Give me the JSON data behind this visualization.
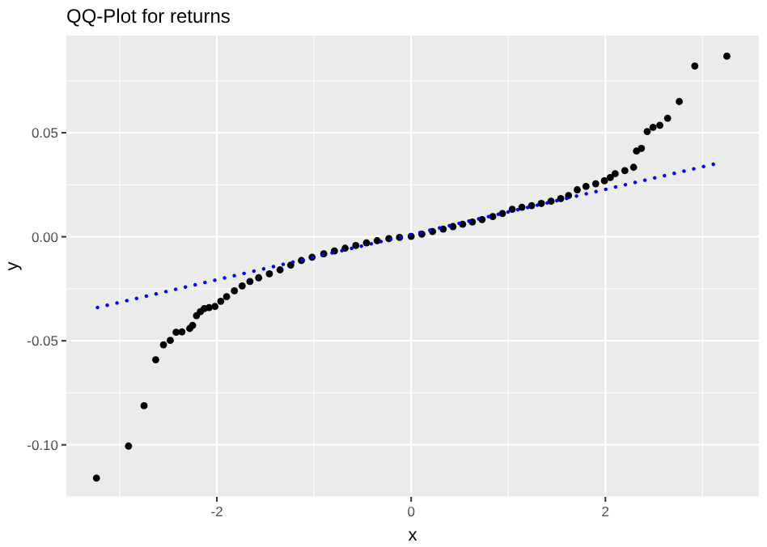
{
  "chart_data": {
    "type": "scatter",
    "title": "QQ-Plot for returns",
    "xlabel": "x",
    "ylabel": "y",
    "xlim": [
      -3.55,
      3.58
    ],
    "xticks": [
      -2,
      0,
      2
    ],
    "ylim": [
      -0.125,
      0.0967
    ],
    "yticks": [
      {
        "value": -0.1,
        "label": "-0.10"
      },
      {
        "value": -0.05,
        "label": "-0.05"
      },
      {
        "value": 0,
        "label": "0.00"
      },
      {
        "value": 0.05,
        "label": "0.05"
      }
    ],
    "grid": true,
    "series": [
      {
        "color": "#000000",
        "marker": "circle",
        "x": [
          -3.24,
          -2.91,
          -2.75,
          -2.63,
          -2.55,
          -2.48,
          -2.42,
          -2.36,
          -2.28,
          -2.25,
          -2.21,
          -2.17,
          -2.13,
          -2.08,
          -2.02,
          -1.96,
          -1.9,
          -1.82,
          -1.74,
          -1.66,
          -1.57,
          -1.46,
          -1.35,
          -1.24,
          -1.13,
          -1.02,
          -0.9,
          -0.79,
          -0.68,
          -0.57,
          -0.46,
          -0.35,
          -0.23,
          -0.12,
          0,
          0.11,
          0.22,
          0.33,
          0.43,
          0.53,
          0.63,
          0.73,
          0.84,
          0.94,
          1.04,
          1.14,
          1.24,
          1.34,
          1.44,
          1.54,
          1.62,
          1.71,
          1.8,
          1.9,
          1.99,
          2.05,
          2.1,
          2.2,
          2.29,
          2.32,
          2.37,
          2.43,
          2.49,
          2.56,
          2.64,
          2.76,
          2.92,
          3.25
        ],
        "values": [
          -0.116,
          -0.1006,
          -0.0812,
          -0.0591,
          -0.0519,
          -0.0498,
          -0.0459,
          -0.0457,
          -0.0441,
          -0.0426,
          -0.0379,
          -0.036,
          -0.0345,
          -0.034,
          -0.0335,
          -0.031,
          -0.0288,
          -0.026,
          -0.0236,
          -0.0215,
          -0.0197,
          -0.0178,
          -0.0159,
          -0.0136,
          -0.0114,
          -0.0098,
          -0.0082,
          -0.0068,
          -0.0055,
          -0.0042,
          -0.0029,
          -0.0019,
          -0.0009,
          -0.0003,
          0.0002,
          0.0013,
          0.0025,
          0.0037,
          0.0049,
          0.006,
          0.0071,
          0.0083,
          0.0097,
          0.0112,
          0.0132,
          0.0142,
          0.015,
          0.016,
          0.0171,
          0.0184,
          0.0198,
          0.0226,
          0.0242,
          0.0255,
          0.0269,
          0.0285,
          0.0303,
          0.0318,
          0.0334,
          0.0412,
          0.0425,
          0.0506,
          0.0526,
          0.0536,
          0.057,
          0.065,
          0.0821,
          0.0868
        ]
      },
      {
        "type": "line",
        "color": "#0000ff",
        "line_style": "dotted",
        "x": [
          -3.23,
          3.17
        ],
        "values": [
          -0.034,
          0.0355
        ]
      }
    ]
  }
}
